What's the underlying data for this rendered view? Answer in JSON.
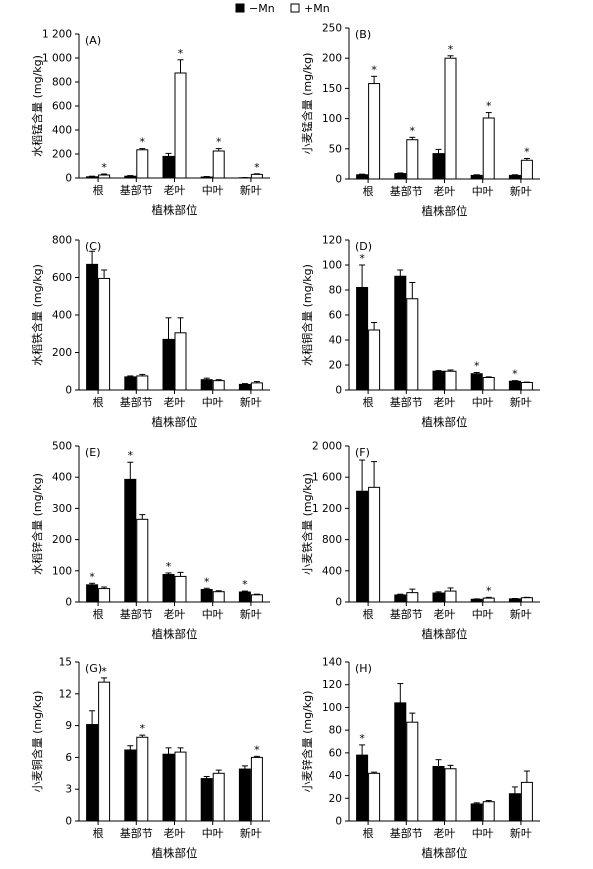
{
  "legend": {
    "items": [
      {
        "label": "−Mn",
        "fill": "#000000"
      },
      {
        "label": "+Mn",
        "fill": "#ffffff"
      }
    ]
  },
  "colors": {
    "minus_mn": "#000000",
    "plus_mn": "#ffffff",
    "stroke": "#000000"
  },
  "chart_data": [
    {
      "type": "bar",
      "panel": "(A)",
      "ylabel": "水稻锰含量 (mg/kg)",
      "xlabel": "植株部位",
      "categories": [
        "根",
        "基部节",
        "老叶",
        "中叶",
        "新叶"
      ],
      "ylim": [
        0,
        1200
      ],
      "yticks": [
        0,
        200,
        400,
        600,
        800,
        1000,
        1200
      ],
      "ytick_labels": [
        "0",
        "200",
        "400",
        "600",
        "800",
        "1 000",
        "1 200"
      ],
      "series": [
        {
          "name": "−Mn",
          "values": [
            10,
            15,
            180,
            8,
            2
          ],
          "errors": [
            5,
            5,
            25,
            4,
            1
          ],
          "sig": [
            false,
            false,
            false,
            false,
            false
          ]
        },
        {
          "name": "+Mn",
          "values": [
            25,
            235,
            875,
            225,
            30
          ],
          "errors": [
            8,
            10,
            110,
            20,
            5
          ],
          "sig": [
            true,
            true,
            true,
            true,
            true
          ]
        }
      ]
    },
    {
      "type": "bar",
      "panel": "(B)",
      "ylabel": "小麦锰含量 (mg/kg)",
      "xlabel": "植株部位",
      "categories": [
        "根",
        "基部节",
        "老叶",
        "中叶",
        "新叶"
      ],
      "ylim": [
        0,
        250
      ],
      "yticks": [
        0,
        50,
        100,
        150,
        200,
        250
      ],
      "ytick_labels": [
        "0",
        "50",
        "100",
        "150",
        "200",
        "250"
      ],
      "series": [
        {
          "name": "−Mn",
          "values": [
            7,
            9,
            42,
            6,
            6
          ],
          "errors": [
            1,
            1,
            7,
            1,
            1
          ],
          "sig": [
            false,
            false,
            false,
            false,
            false
          ]
        },
        {
          "name": "+Mn",
          "values": [
            158,
            65,
            200,
            101,
            31
          ],
          "errors": [
            12,
            4,
            4,
            9,
            3
          ],
          "sig": [
            true,
            true,
            true,
            true,
            true
          ]
        }
      ]
    },
    {
      "type": "bar",
      "panel": "(C)",
      "ylabel": "水稻铁含量 (mg/kg)",
      "xlabel": "植株部位",
      "categories": [
        "根",
        "基部节",
        "老叶",
        "中叶",
        "新叶"
      ],
      "ylim": [
        0,
        800
      ],
      "yticks": [
        0,
        200,
        400,
        600,
        800
      ],
      "ytick_labels": [
        "0",
        "200",
        "400",
        "600",
        "800"
      ],
      "series": [
        {
          "name": "−Mn",
          "values": [
            670,
            70,
            270,
            55,
            30
          ],
          "errors": [
            70,
            5,
            115,
            8,
            4
          ],
          "sig": [
            false,
            false,
            false,
            false,
            false
          ]
        },
        {
          "name": "+Mn",
          "values": [
            595,
            75,
            305,
            50,
            38
          ],
          "errors": [
            45,
            8,
            80,
            5,
            7
          ],
          "sig": [
            false,
            false,
            false,
            false,
            false
          ]
        }
      ]
    },
    {
      "type": "bar",
      "panel": "(D)",
      "ylabel": "水稻铜含量 (mg/kg)",
      "xlabel": "植株部位",
      "categories": [
        "根",
        "基部节",
        "老叶",
        "中叶",
        "新叶"
      ],
      "ylim": [
        0,
        120
      ],
      "yticks": [
        0,
        20,
        40,
        60,
        80,
        100,
        120
      ],
      "ytick_labels": [
        "0",
        "20",
        "40",
        "60",
        "80",
        "100",
        "120"
      ],
      "series": [
        {
          "name": "−Mn",
          "values": [
            82,
            91,
            15,
            13,
            7
          ],
          "errors": [
            18,
            5,
            0.5,
            1,
            0.5
          ],
          "sig": [
            true,
            false,
            false,
            true,
            true
          ]
        },
        {
          "name": "+Mn",
          "values": [
            48,
            73,
            15,
            10,
            6
          ],
          "errors": [
            6,
            13,
            1,
            0.5,
            0.3
          ],
          "sig": [
            false,
            false,
            false,
            false,
            false
          ]
        }
      ]
    },
    {
      "type": "bar",
      "panel": "(E)",
      "ylabel": "水稻锌含量 (mg/kg)",
      "xlabel": "植株部位",
      "categories": [
        "根",
        "基部节",
        "老叶",
        "中叶",
        "新叶"
      ],
      "ylim": [
        0,
        500
      ],
      "yticks": [
        0,
        100,
        200,
        300,
        400,
        500
      ],
      "ytick_labels": [
        "0",
        "100",
        "200",
        "300",
        "400",
        "500"
      ],
      "series": [
        {
          "name": "−Mn",
          "values": [
            55,
            393,
            88,
            40,
            32
          ],
          "errors": [
            5,
            55,
            5,
            4,
            3
          ],
          "sig": [
            true,
            true,
            true,
            true,
            true
          ]
        },
        {
          "name": "+Mn",
          "values": [
            43,
            265,
            82,
            33,
            23
          ],
          "errors": [
            5,
            15,
            13,
            3,
            2
          ],
          "sig": [
            false,
            false,
            false,
            false,
            false
          ]
        }
      ]
    },
    {
      "type": "bar",
      "panel": "(F)",
      "ylabel": "小麦铁含量 (mg/kg)",
      "xlabel": "植株部位",
      "categories": [
        "根",
        "基部节",
        "老叶",
        "中叶",
        "新叶"
      ],
      "ylim": [
        0,
        2000
      ],
      "yticks": [
        0,
        400,
        800,
        1200,
        1600,
        2000
      ],
      "ytick_labels": [
        "0",
        "400",
        "800",
        "1 200",
        "1 600",
        "2 000"
      ],
      "series": [
        {
          "name": "−Mn",
          "values": [
            1420,
            90,
            115,
            35,
            40
          ],
          "errors": [
            400,
            10,
            15,
            5,
            5
          ],
          "sig": [
            false,
            false,
            false,
            false,
            false
          ]
        },
        {
          "name": "+Mn",
          "values": [
            1470,
            120,
            140,
            50,
            55
          ],
          "errors": [
            330,
            45,
            40,
            10,
            5
          ],
          "sig": [
            false,
            false,
            false,
            true,
            false
          ]
        }
      ]
    },
    {
      "type": "bar",
      "panel": "(G)",
      "ylabel": "小麦铜含量 (mg/kg)",
      "xlabel": "植株部位",
      "categories": [
        "根",
        "基部节",
        "老叶",
        "中叶",
        "新叶"
      ],
      "ylim": [
        0,
        15
      ],
      "yticks": [
        0,
        3,
        6,
        9,
        12,
        15
      ],
      "ytick_labels": [
        "0",
        "3",
        "6",
        "9",
        "12",
        "15"
      ],
      "series": [
        {
          "name": "−Mn",
          "values": [
            9.1,
            6.7,
            6.3,
            4.0,
            4.9
          ],
          "errors": [
            1.3,
            0.4,
            0.6,
            0.2,
            0.3
          ],
          "sig": [
            false,
            false,
            false,
            false,
            false
          ]
        },
        {
          "name": "+Mn",
          "values": [
            13.1,
            7.9,
            6.5,
            4.5,
            6.0
          ],
          "errors": [
            0.4,
            0.2,
            0.4,
            0.3,
            0.1
          ],
          "sig": [
            true,
            true,
            false,
            false,
            true
          ]
        }
      ]
    },
    {
      "type": "bar",
      "panel": "(H)",
      "ylabel": "小麦锌含量 (mg/kg)",
      "xlabel": "植株部位",
      "categories": [
        "根",
        "基部节",
        "老叶",
        "中叶",
        "新叶"
      ],
      "ylim": [
        0,
        140
      ],
      "yticks": [
        0,
        20,
        40,
        60,
        80,
        100,
        120,
        140
      ],
      "ytick_labels": [
        "0",
        "20",
        "40",
        "60",
        "80",
        "100",
        "120",
        "140"
      ],
      "series": [
        {
          "name": "−Mn",
          "values": [
            58,
            104,
            48,
            15,
            24
          ],
          "errors": [
            9,
            17,
            6,
            1,
            6
          ],
          "sig": [
            true,
            false,
            false,
            false,
            false
          ]
        },
        {
          "name": "+Mn",
          "values": [
            42,
            87,
            46,
            17,
            34
          ],
          "errors": [
            1,
            8,
            3,
            1,
            10
          ],
          "sig": [
            false,
            false,
            false,
            false,
            false
          ]
        }
      ]
    }
  ]
}
